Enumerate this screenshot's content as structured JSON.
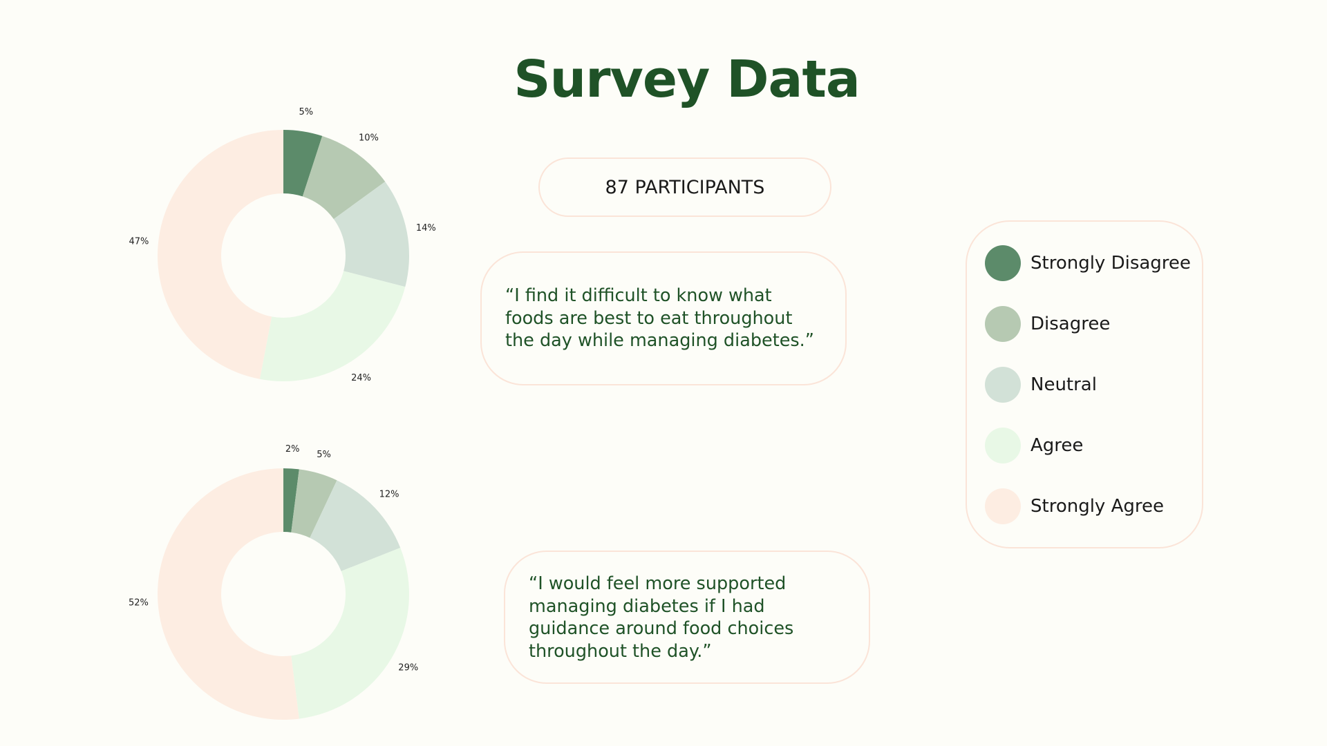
{
  "title": "Survey Data",
  "participants": "87 PARTICIPANTS",
  "quotes": [
    "“I find it difficult to know what foods are best to eat throughout the day while managing diabetes.”",
    "“I would feel more supported managing diabetes if I had guidance around food choices throughout the day.”"
  ],
  "legend": [
    {
      "label": "Strongly Disagree",
      "color": "#5c8b6a"
    },
    {
      "label": "Disagree",
      "color": "#b6c9b2"
    },
    {
      "label": "Neutral",
      "color": "#d2e1d7"
    },
    {
      "label": "Agree",
      "color": "#e8f8e6"
    },
    {
      "label": "Strongly Agree",
      "color": "#fdede2"
    }
  ],
  "chart_data": [
    {
      "type": "pie",
      "variant": "donut",
      "categories": [
        "Strongly Disagree",
        "Disagree",
        "Neutral",
        "Agree",
        "Strongly Agree"
      ],
      "values": [
        5,
        10,
        14,
        24,
        47
      ],
      "labels": [
        "5%",
        "10%",
        "14%",
        "24%",
        "47%"
      ],
      "colors": [
        "#5c8b6a",
        "#b6c9b2",
        "#d2e1d7",
        "#e8f8e6",
        "#fdede2"
      ],
      "legend": "right"
    },
    {
      "type": "pie",
      "variant": "donut",
      "categories": [
        "Strongly Disagree",
        "Disagree",
        "Neutral",
        "Agree",
        "Strongly Agree"
      ],
      "values": [
        2,
        5,
        12,
        29,
        52
      ],
      "labels": [
        "2%",
        "5%",
        "12%",
        "29%",
        "52%"
      ],
      "colors": [
        "#5c8b6a",
        "#b6c9b2",
        "#d2e1d7",
        "#e8f8e6",
        "#fdede2"
      ],
      "legend": "right"
    }
  ]
}
